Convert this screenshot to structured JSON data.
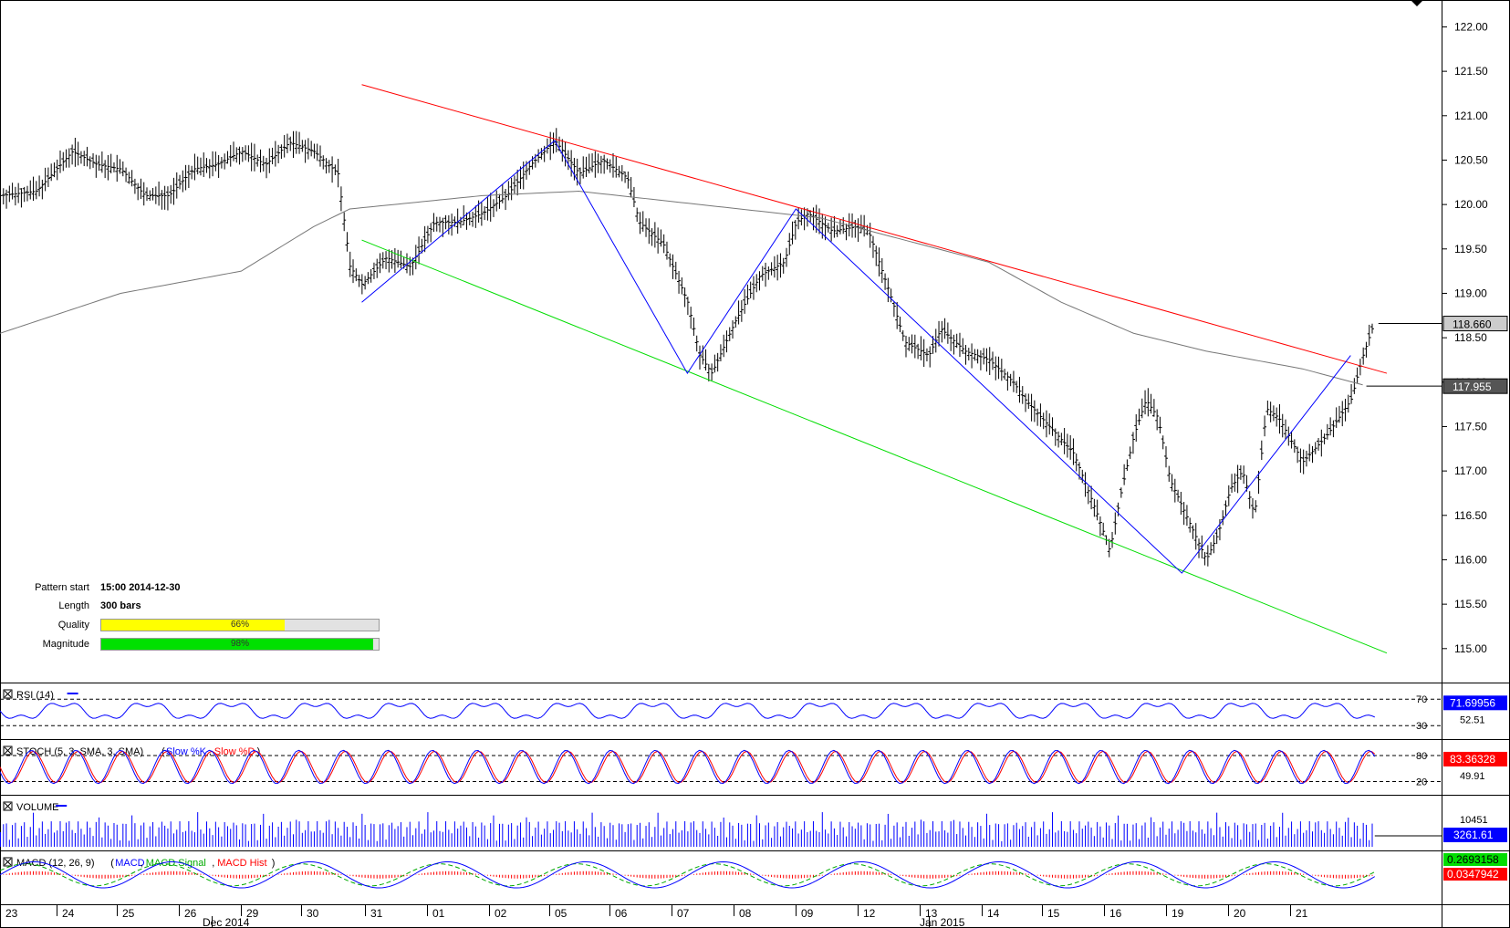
{
  "pattern": {
    "start_label": "Pattern start",
    "start_value": "15:00 2014-12-30",
    "length_label": "Length",
    "length_value": "300 bars",
    "quality_label": "Quality",
    "quality_value": "66%",
    "quality_fraction": 0.66,
    "quality_color": "#ffff00",
    "magnitude_label": "Magnitude",
    "magnitude_value": "98%",
    "magnitude_fraction": 0.98,
    "magnitude_color": "#00e000"
  },
  "chart_data": {
    "type": "line",
    "price_axis": {
      "ylim": [
        114.7,
        122.2
      ],
      "ticks": [
        "122.00",
        "121.50",
        "121.00",
        "120.50",
        "120.00",
        "119.50",
        "119.00",
        "118.50",
        "118.00",
        "117.50",
        "117.00",
        "116.50",
        "116.00",
        "115.50",
        "115.00"
      ]
    },
    "last_price": "118.660",
    "moving_average_value": "117.955",
    "x_day_labels": [
      "23",
      "24",
      "25",
      "26",
      "29",
      "30",
      "31",
      "01",
      "02",
      "05",
      "06",
      "07",
      "08",
      "09",
      "12",
      "13",
      "14",
      "15",
      "16",
      "19",
      "20",
      "21"
    ],
    "x_month_labels": [
      "Dec 2014",
      "Jan 2015"
    ],
    "price_path": [
      [
        0,
        120.1
      ],
      [
        3,
        120.15
      ],
      [
        6,
        120.6
      ],
      [
        8,
        120.45
      ],
      [
        10,
        120.4
      ],
      [
        12,
        120.1
      ],
      [
        14,
        120.1
      ],
      [
        16,
        120.4
      ],
      [
        18,
        120.45
      ],
      [
        20,
        120.6
      ],
      [
        22,
        120.45
      ],
      [
        24,
        120.7
      ],
      [
        26,
        120.6
      ],
      [
        28,
        120.35
      ],
      [
        29,
        119.3
      ],
      [
        30,
        119.1
      ],
      [
        32,
        119.4
      ],
      [
        34,
        119.3
      ],
      [
        36,
        119.8
      ],
      [
        38,
        119.8
      ],
      [
        40,
        119.9
      ],
      [
        42,
        120.1
      ],
      [
        44,
        120.45
      ],
      [
        46,
        120.72
      ],
      [
        48,
        120.35
      ],
      [
        50,
        120.5
      ],
      [
        52,
        120.3
      ],
      [
        53,
        119.8
      ],
      [
        55,
        119.55
      ],
      [
        57,
        118.9
      ],
      [
        58,
        118.3
      ],
      [
        59,
        118.1
      ],
      [
        61,
        118.7
      ],
      [
        63,
        119.2
      ],
      [
        65,
        119.35
      ],
      [
        66,
        119.8
      ],
      [
        67,
        119.9
      ],
      [
        69,
        119.7
      ],
      [
        71,
        119.75
      ],
      [
        72,
        119.7
      ],
      [
        73,
        119.3
      ],
      [
        74,
        118.9
      ],
      [
        75,
        118.45
      ],
      [
        77,
        118.3
      ],
      [
        78,
        118.6
      ],
      [
        80,
        118.35
      ],
      [
        82,
        118.25
      ],
      [
        84,
        118.0
      ],
      [
        85,
        117.8
      ],
      [
        87,
        117.5
      ],
      [
        89,
        117.2
      ],
      [
        91,
        116.5
      ],
      [
        92,
        116.1
      ],
      [
        93,
        116.8
      ],
      [
        94,
        117.4
      ],
      [
        95,
        117.8
      ],
      [
        96,
        117.6
      ],
      [
        97,
        116.9
      ],
      [
        98,
        116.6
      ],
      [
        99,
        116.3
      ],
      [
        100,
        116.0
      ],
      [
        101,
        116.3
      ],
      [
        102,
        116.8
      ],
      [
        103,
        117.0
      ],
      [
        104,
        116.5
      ],
      [
        105,
        117.7
      ],
      [
        106,
        117.6
      ],
      [
        108,
        117.1
      ],
      [
        110,
        117.4
      ],
      [
        111,
        117.6
      ],
      [
        112,
        117.8
      ],
      [
        113,
        118.3
      ],
      [
        114,
        118.7
      ]
    ],
    "ma_path": [
      [
        0,
        118.55
      ],
      [
        10,
        119.0
      ],
      [
        20,
        119.25
      ],
      [
        26,
        119.75
      ],
      [
        29,
        119.95
      ],
      [
        40,
        120.1
      ],
      [
        48,
        120.15
      ],
      [
        58,
        120.0
      ],
      [
        68,
        119.85
      ],
      [
        75,
        119.6
      ],
      [
        82,
        119.35
      ],
      [
        88,
        118.9
      ],
      [
        94,
        118.55
      ],
      [
        100,
        118.35
      ],
      [
        108,
        118.15
      ],
      [
        113,
        117.97
      ]
    ],
    "pattern_lines": {
      "resistance": [
        [
          30,
          121.35
        ],
        [
          115,
          118.1
        ]
      ],
      "support": [
        [
          30,
          119.6
        ],
        [
          115,
          114.95
        ]
      ],
      "zigzag": [
        [
          30,
          118.9
        ],
        [
          46,
          120.72
        ],
        [
          57,
          118.1
        ],
        [
          66,
          119.95
        ],
        [
          98,
          115.85
        ],
        [
          112,
          118.3
        ]
      ]
    },
    "indicators": [
      {
        "name": "RSI (14)",
        "value": "71.69956",
        "mid": "52.51",
        "levels": [
          "70",
          "30"
        ],
        "color": "#0000ff"
      },
      {
        "name": "STOCH (5, 3, SMA, 3, SMA)",
        "series": [
          "Slow %K",
          "Slow %D"
        ],
        "value": "83.36328",
        "mid": "49.91",
        "levels": [
          "80",
          "20"
        ],
        "color": "#ff0000"
      },
      {
        "name": "VOLUME",
        "value": "3261.61",
        "mid": "10451",
        "color": "#0000ff"
      },
      {
        "name": "MACD (12, 26, 9)",
        "series": [
          "MACD",
          "MACD Signal",
          "MACD Hist"
        ],
        "value1": "0.2693158",
        "value2": "0.0347942"
      }
    ]
  }
}
